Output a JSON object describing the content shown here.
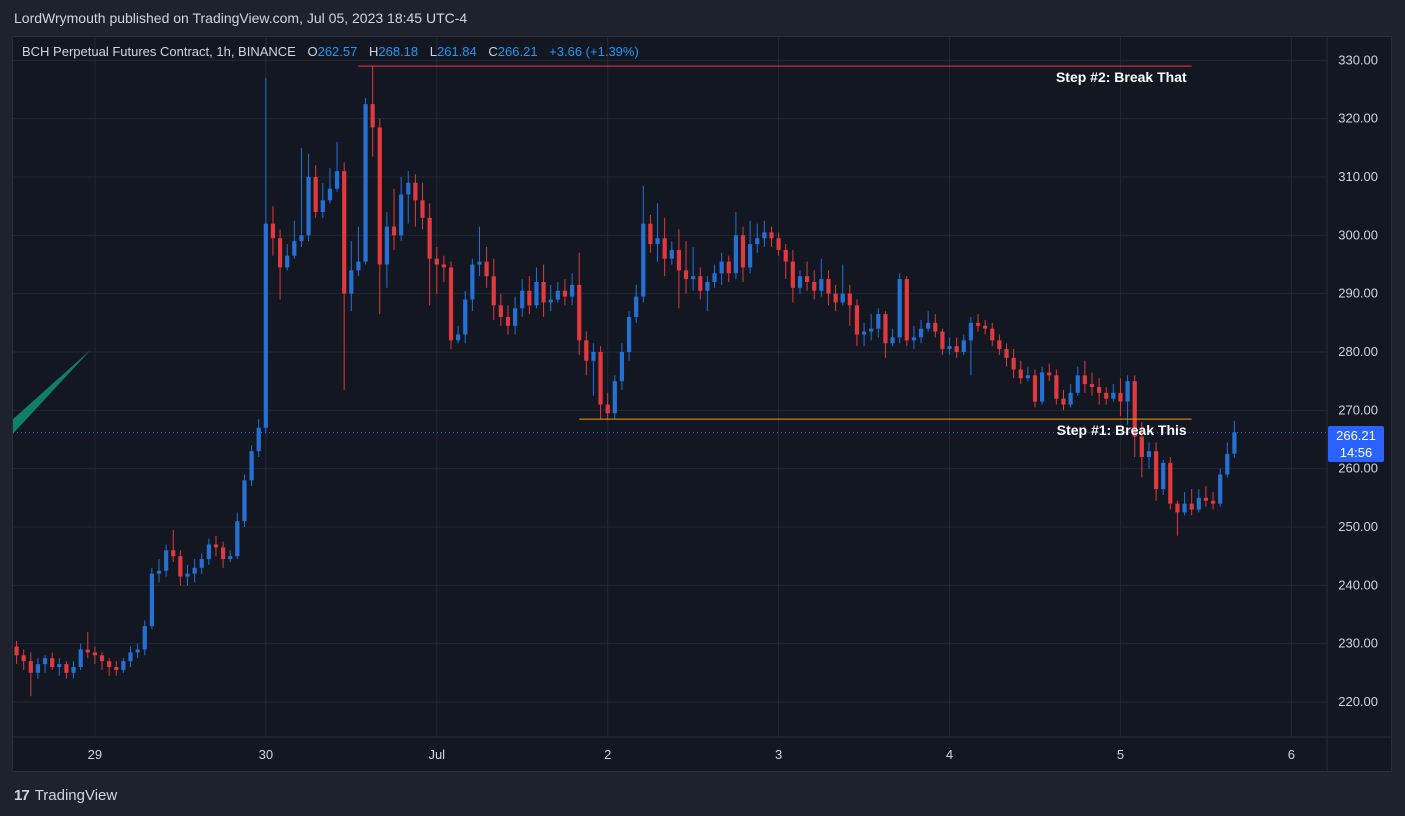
{
  "header": {
    "published_by": "LordWrymouth published on TradingView.com, Jul 05, 2023 18:45 UTC-4"
  },
  "legend": {
    "symbol": "BCH Perpetual Futures Contract, 1h, BINANCE",
    "o_label": "O",
    "o_value": "262.57",
    "h_label": "H",
    "h_value": "268.18",
    "l_label": "L",
    "l_value": "261.84",
    "c_label": "C",
    "c_value": "266.21",
    "change": "+3.66 (+1.39%)"
  },
  "price_badge": {
    "price": "266.21",
    "countdown": "14:56"
  },
  "footer": {
    "brand": "TradingView"
  },
  "colors": {
    "up": "#2670d3",
    "down": "#e0393e",
    "grid": "#232733",
    "axis_text": "#d1d4dc",
    "resistance_line": "#f23645",
    "support_line": "#ff9800",
    "trend_arrow": "#0f7e6b",
    "current_price_line": "#2962ff"
  },
  "chart_data": {
    "type": "candlestick",
    "title": "BCH Perpetual Futures Contract, 1h, BINANCE",
    "xlabel": "",
    "ylabel": "",
    "ylim": [
      214,
      334
    ],
    "y_ticks": [
      "330.00",
      "320.00",
      "310.00",
      "300.00",
      "290.00",
      "280.00",
      "270.00",
      "260.00",
      "250.00",
      "240.00",
      "230.00",
      "220.00"
    ],
    "x_ticks": [
      {
        "label": "29",
        "t": 12
      },
      {
        "label": "30",
        "t": 36
      },
      {
        "label": "Jul",
        "t": 60
      },
      {
        "label": "2",
        "t": 84
      },
      {
        "label": "3",
        "t": 108
      },
      {
        "label": "4",
        "t": 132
      },
      {
        "label": "5",
        "t": 156
      },
      {
        "label": "6",
        "t": 180
      }
    ],
    "x_range_hours": [
      0.5,
      185
    ],
    "candles": [
      [
        229.5,
        228.0,
        230.5,
        226.5
      ],
      [
        228.0,
        227.0,
        229.0,
        225.5
      ],
      [
        227.0,
        225.0,
        228.5,
        221.0
      ],
      [
        225.0,
        226.5,
        227.5,
        224.0
      ],
      [
        226.5,
        227.5,
        228.0,
        225.0
      ],
      [
        227.5,
        226.0,
        228.5,
        225.5
      ],
      [
        226.0,
        226.5,
        227.5,
        224.5
      ],
      [
        226.5,
        225.0,
        227.0,
        224.0
      ],
      [
        225.0,
        226.0,
        227.0,
        224.0
      ],
      [
        226.0,
        229.0,
        230.0,
        225.5
      ],
      [
        229.0,
        228.5,
        232.0,
        227.5
      ],
      [
        228.5,
        228.0,
        229.5,
        226.5
      ],
      [
        228.0,
        227.0,
        228.5,
        225.5
      ],
      [
        227.0,
        226.0,
        227.5,
        224.5
      ],
      [
        226.0,
        225.5,
        227.0,
        224.5
      ],
      [
        225.5,
        227.0,
        227.5,
        225.0
      ],
      [
        227.0,
        228.5,
        229.5,
        226.0
      ],
      [
        228.5,
        229.0,
        230.0,
        227.5
      ],
      [
        229.0,
        233.0,
        234.0,
        228.0
      ],
      [
        233.0,
        242.0,
        243.0,
        232.5
      ],
      [
        242.0,
        242.5,
        244.5,
        240.5
      ],
      [
        242.5,
        246.0,
        247.0,
        241.5
      ],
      [
        246.0,
        245.0,
        249.5,
        244.0
      ],
      [
        245.0,
        241.5,
        246.0,
        240.0
      ],
      [
        241.5,
        242.0,
        243.5,
        240.0
      ],
      [
        242.0,
        243.0,
        244.5,
        240.5
      ],
      [
        243.0,
        244.5,
        245.5,
        242.0
      ],
      [
        244.5,
        247.0,
        248.0,
        243.5
      ],
      [
        247.0,
        246.5,
        248.5,
        245.0
      ],
      [
        246.5,
        244.5,
        247.5,
        243.0
      ],
      [
        244.5,
        245.0,
        246.0,
        244.0
      ],
      [
        245.0,
        251.0,
        252.5,
        244.5
      ],
      [
        251.0,
        258.0,
        259.0,
        250.0
      ],
      [
        258.0,
        263.0,
        264.0,
        257.0
      ],
      [
        263.0,
        267.0,
        268.5,
        262.0
      ],
      [
        267.0,
        302.0,
        327.0,
        266.0
      ],
      [
        302.0,
        299.5,
        305.0,
        296.5
      ],
      [
        299.5,
        294.5,
        301.0,
        289.0
      ],
      [
        294.5,
        296.5,
        298.5,
        294.0
      ],
      [
        296.5,
        299.0,
        302.5,
        296.0
      ],
      [
        299.0,
        300.0,
        315.0,
        298.0
      ],
      [
        300.0,
        310.0,
        314.0,
        299.0
      ],
      [
        310.0,
        304.0,
        312.0,
        303.0
      ],
      [
        304.0,
        306.0,
        309.0,
        303.0
      ],
      [
        306.0,
        308.0,
        311.5,
        305.5
      ],
      [
        308.0,
        311.0,
        316.0,
        307.5
      ],
      [
        311.0,
        290.0,
        312.5,
        273.5
      ],
      [
        290.0,
        294.0,
        299.0,
        287.0
      ],
      [
        294.0,
        295.5,
        301.5,
        293.0
      ],
      [
        295.5,
        322.5,
        323.5,
        295.0
      ],
      [
        322.5,
        318.5,
        329.0,
        313.5
      ],
      [
        318.5,
        295.0,
        320.0,
        286.5
      ],
      [
        295.0,
        301.5,
        304.0,
        291.0
      ],
      [
        301.5,
        300.0,
        308.0,
        297.5
      ],
      [
        300.0,
        307.0,
        310.0,
        299.0
      ],
      [
        307.0,
        309.0,
        311.0,
        302.0
      ],
      [
        309.0,
        306.0,
        310.5,
        301.5
      ],
      [
        306.0,
        303.0,
        309.0,
        301.0
      ],
      [
        303.0,
        296.0,
        305.5,
        288.0
      ],
      [
        296.0,
        295.0,
        298.0,
        290.0
      ],
      [
        295.0,
        294.5,
        296.5,
        292.0
      ],
      [
        294.5,
        282.0,
        295.5,
        280.5
      ],
      [
        282.0,
        283.0,
        284.5,
        281.5
      ],
      [
        283.0,
        289.0,
        290.5,
        281.5
      ],
      [
        289.0,
        295.0,
        296.0,
        287.0
      ],
      [
        295.0,
        295.5,
        301.5,
        293.0
      ],
      [
        295.5,
        293.0,
        298.0,
        291.0
      ],
      [
        293.0,
        288.0,
        296.0,
        285.5
      ],
      [
        288.0,
        286.0,
        290.0,
        284.5
      ],
      [
        286.0,
        284.5,
        288.0,
        283.0
      ],
      [
        284.5,
        287.5,
        289.5,
        283.0
      ],
      [
        287.5,
        290.5,
        292.5,
        286.0
      ],
      [
        290.5,
        288.0,
        293.0,
        286.5
      ],
      [
        288.0,
        292.0,
        294.5,
        287.5
      ],
      [
        292.0,
        288.5,
        295.0,
        286.0
      ],
      [
        288.5,
        289.0,
        291.5,
        287.0
      ],
      [
        289.0,
        290.5,
        292.0,
        288.5
      ],
      [
        290.5,
        289.5,
        292.5,
        288.0
      ],
      [
        289.5,
        291.5,
        293.5,
        288.0
      ],
      [
        291.5,
        282.0,
        297.0,
        279.5
      ],
      [
        282.0,
        278.5,
        283.5,
        276.0
      ],
      [
        278.5,
        280.0,
        281.5,
        272.5
      ],
      [
        280.0,
        271.0,
        281.0,
        268.5
      ],
      [
        271.0,
        269.5,
        273.0,
        268.5
      ],
      [
        269.5,
        275.0,
        276.0,
        268.5
      ],
      [
        275.0,
        280.0,
        281.5,
        273.5
      ],
      [
        280.0,
        286.0,
        287.0,
        278.5
      ],
      [
        286.0,
        289.5,
        291.5,
        285.0
      ],
      [
        289.5,
        302.0,
        308.5,
        288.5
      ],
      [
        302.0,
        298.5,
        303.5,
        297.0
      ],
      [
        298.5,
        299.5,
        305.5,
        295.5
      ],
      [
        299.5,
        296.0,
        303.0,
        293.0
      ],
      [
        296.0,
        297.5,
        299.0,
        295.0
      ],
      [
        297.5,
        294.0,
        301.0,
        287.5
      ],
      [
        294.0,
        292.5,
        299.0,
        290.0
      ],
      [
        292.5,
        293.0,
        298.0,
        290.5
      ],
      [
        293.0,
        290.5,
        294.5,
        289.0
      ],
      [
        290.5,
        292.0,
        293.0,
        287.0
      ],
      [
        292.0,
        293.5,
        295.0,
        291.0
      ],
      [
        293.5,
        295.5,
        297.0,
        291.5
      ],
      [
        295.5,
        293.5,
        296.5,
        292.0
      ],
      [
        293.5,
        300.0,
        304.0,
        292.5
      ],
      [
        300.0,
        294.5,
        301.5,
        292.0
      ],
      [
        294.5,
        298.5,
        302.5,
        293.5
      ],
      [
        298.5,
        299.5,
        302.0,
        297.0
      ],
      [
        299.5,
        300.5,
        302.5,
        298.0
      ],
      [
        300.5,
        299.5,
        301.5,
        298.0
      ],
      [
        299.5,
        297.5,
        300.5,
        296.5
      ],
      [
        297.5,
        295.5,
        298.5,
        292.5
      ],
      [
        295.5,
        291.0,
        297.5,
        288.5
      ],
      [
        291.0,
        293.0,
        294.0,
        290.0
      ],
      [
        293.0,
        292.0,
        295.5,
        290.5
      ],
      [
        292.0,
        290.5,
        294.0,
        289.0
      ],
      [
        290.5,
        292.5,
        296.0,
        289.5
      ],
      [
        292.5,
        290.0,
        294.0,
        288.0
      ],
      [
        290.0,
        288.5,
        291.5,
        287.0
      ],
      [
        288.5,
        290.0,
        295.0,
        288.0
      ],
      [
        290.0,
        288.0,
        291.5,
        284.5
      ],
      [
        288.0,
        283.0,
        289.0,
        281.0
      ],
      [
        283.0,
        283.5,
        285.0,
        281.0
      ],
      [
        283.5,
        284.0,
        286.5,
        282.0
      ],
      [
        284.0,
        286.5,
        287.5,
        282.5
      ],
      [
        286.5,
        281.5,
        287.0,
        279.0
      ],
      [
        281.5,
        282.5,
        284.0,
        281.0
      ],
      [
        282.5,
        292.5,
        293.5,
        281.5
      ],
      [
        292.5,
        282.0,
        293.0,
        281.0
      ],
      [
        282.0,
        282.5,
        284.5,
        280.5
      ],
      [
        282.5,
        284.0,
        285.5,
        281.5
      ],
      [
        284.0,
        285.0,
        287.0,
        283.5
      ],
      [
        285.0,
        283.5,
        286.5,
        282.5
      ],
      [
        283.5,
        280.5,
        284.0,
        279.5
      ],
      [
        280.5,
        281.0,
        282.5,
        279.5
      ],
      [
        281.0,
        280.0,
        282.5,
        279.0
      ],
      [
        280.0,
        282.0,
        283.0,
        279.5
      ],
      [
        282.0,
        285.0,
        286.0,
        276.0
      ],
      [
        285.0,
        284.5,
        286.5,
        283.5
      ],
      [
        284.5,
        284.0,
        285.5,
        283.0
      ],
      [
        284.0,
        282.0,
        285.0,
        281.0
      ],
      [
        282.0,
        280.5,
        283.0,
        279.5
      ],
      [
        280.5,
        279.0,
        281.5,
        277.5
      ],
      [
        279.0,
        277.0,
        280.5,
        275.5
      ],
      [
        277.0,
        275.5,
        278.5,
        274.5
      ],
      [
        275.5,
        276.0,
        277.5,
        275.0
      ],
      [
        276.0,
        271.5,
        277.0,
        270.5
      ],
      [
        271.5,
        276.5,
        277.5,
        271.0
      ],
      [
        276.5,
        276.0,
        278.0,
        275.0
      ],
      [
        276.0,
        272.0,
        277.0,
        271.0
      ],
      [
        272.0,
        271.0,
        273.5,
        270.0
      ],
      [
        271.0,
        273.0,
        274.5,
        270.5
      ],
      [
        273.0,
        276.0,
        277.5,
        272.5
      ],
      [
        276.0,
        274.5,
        278.5,
        273.0
      ],
      [
        274.5,
        274.0,
        276.5,
        272.5
      ],
      [
        274.0,
        273.0,
        275.5,
        271.0
      ],
      [
        273.0,
        272.0,
        274.0,
        271.0
      ],
      [
        272.0,
        273.0,
        274.5,
        271.5
      ],
      [
        273.0,
        271.5,
        275.5,
        269.0
      ],
      [
        271.5,
        275.0,
        276.0,
        267.5
      ],
      [
        275.0,
        265.5,
        276.0,
        262.0
      ],
      [
        265.5,
        262.0,
        268.0,
        258.5
      ],
      [
        262.0,
        263.0,
        264.5,
        260.0
      ],
      [
        263.0,
        256.5,
        264.5,
        254.5
      ],
      [
        256.5,
        261.0,
        261.5,
        255.5
      ],
      [
        261.0,
        254.0,
        262.0,
        253.0
      ],
      [
        254.0,
        252.5,
        254.5,
        248.5
      ],
      [
        252.5,
        254.0,
        256.0,
        252.0
      ],
      [
        254.0,
        253.0,
        256.5,
        252.0
      ],
      [
        253.0,
        255.0,
        256.5,
        252.5
      ],
      [
        255.0,
        254.5,
        257.0,
        253.5
      ],
      [
        254.5,
        254.0,
        256.0,
        253.0
      ],
      [
        254.0,
        259.0,
        260.0,
        253.5
      ],
      [
        259.0,
        262.5,
        264.5,
        258.5
      ],
      [
        262.57,
        266.21,
        268.18,
        261.84
      ]
    ],
    "annotations": [
      {
        "text": "Step #2: Break That",
        "price": 329.0,
        "t_start": 49,
        "t_end": 166
      },
      {
        "text": "Step #1: Break This",
        "price": 268.5,
        "t_start": 80,
        "t_end": 166
      }
    ],
    "current_price": 266.21,
    "grid": true
  }
}
